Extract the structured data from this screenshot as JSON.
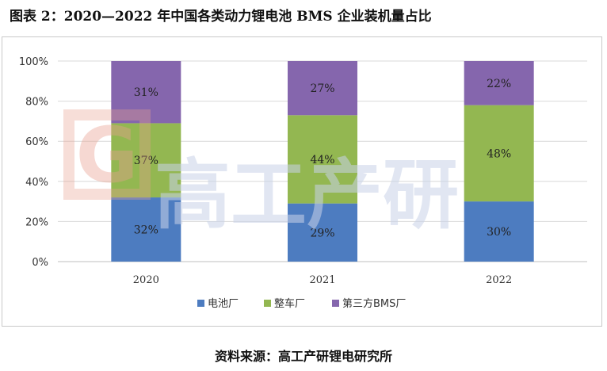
{
  "figure_title": "图表 2：2020—2022 年中国各类动力锂电池 BMS 企业装机量占比",
  "source_note": "资料来源：高工产研锂电研究所",
  "watermark": {
    "text": "高工产研",
    "logo_letter": "G"
  },
  "colors": {
    "battery_maker": "#4d7cc0",
    "automaker": "#93b751",
    "third_party": "#8566ad",
    "grid": "#d9d9d9",
    "axis": "#bfbfbf"
  },
  "chart_data": {
    "type": "bar",
    "stacked": true,
    "categories": [
      "2020",
      "2021",
      "2022"
    ],
    "series": [
      {
        "name": "电池厂",
        "values": [
          32,
          29,
          30
        ],
        "labels": [
          "32%",
          "29%",
          "30%"
        ]
      },
      {
        "name": "整车厂",
        "values": [
          37,
          44,
          48
        ],
        "labels": [
          "37%",
          "44%",
          "48%"
        ]
      },
      {
        "name": "第三方BMS厂",
        "values": [
          31,
          27,
          22
        ],
        "labels": [
          "31%",
          "27%",
          "22%"
        ]
      }
    ],
    "yticks": [
      "0%",
      "20%",
      "40%",
      "60%",
      "80%",
      "100%"
    ],
    "ylim": [
      0,
      100
    ],
    "grid": true,
    "legend_position": "bottom"
  }
}
